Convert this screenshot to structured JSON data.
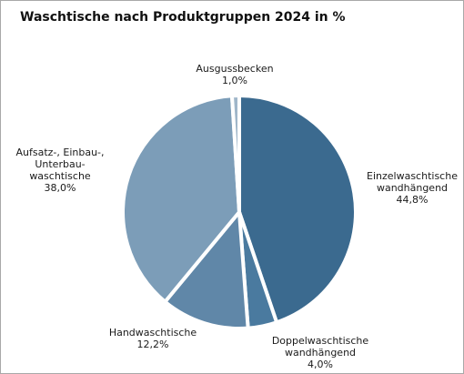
{
  "chart_data": {
    "type": "pie",
    "title": "Waschtische nach Produktgruppen 2024 in %",
    "slices": [
      {
        "label_lines": [
          "Einzelwaschtische",
          "wandhängend"
        ],
        "value": 44.8,
        "value_label": "44,8%",
        "color": "#3b6a8f"
      },
      {
        "label_lines": [
          "Doppelwaschtische",
          "wandhängend"
        ],
        "value": 4.0,
        "value_label": "4,0%",
        "color": "#4a7a9f"
      },
      {
        "label_lines": [
          "Handwaschtische"
        ],
        "value": 12.2,
        "value_label": "12,2%",
        "color": "#6087a8"
      },
      {
        "label_lines": [
          "Aufsatz-, Einbau-,",
          "Unterbau-",
          "waschtische"
        ],
        "value": 38.0,
        "value_label": "38,0%",
        "color": "#7c9db8"
      },
      {
        "label_lines": [
          "Ausgussbecken"
        ],
        "value": 1.0,
        "value_label": "1,0%",
        "color": "#9fb6c9"
      }
    ]
  }
}
